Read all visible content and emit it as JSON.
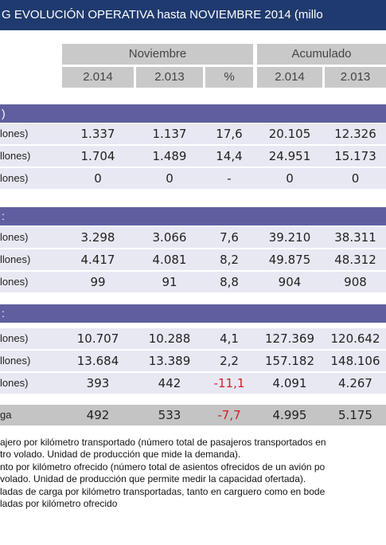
{
  "title": "G EVOLUCIÓN OPERATIVA hasta NOVIEMBRE 2014 (millo",
  "header": {
    "group1": "Noviembre",
    "group2": "Acumulado",
    "cols": [
      "2.014",
      "2.013",
      "%",
      "2.014",
      "2.013"
    ]
  },
  "sections": [
    {
      "label": ")",
      "rows": [
        {
          "label": "lones)",
          "cells": [
            "1.337",
            "1.137",
            "17,6",
            "20.105",
            "12.326"
          ]
        },
        {
          "label": "llones)",
          "cells": [
            "1.704",
            "1.489",
            "14,4",
            "24.951",
            "15.173"
          ]
        },
        {
          "label": "lones)",
          "cells": [
            "0",
            "0",
            "-",
            "0",
            "0"
          ]
        }
      ]
    },
    {
      "label": ":",
      "rows": [
        {
          "label": "lones)",
          "cells": [
            "3.298",
            "3.066",
            "7,6",
            "39.210",
            "38.311"
          ]
        },
        {
          "label": "llones)",
          "cells": [
            "4.417",
            "4.081",
            "8,2",
            "49.875",
            "48.312"
          ]
        },
        {
          "label": "lones)",
          "cells": [
            "99",
            "91",
            "8,8",
            "904",
            "908"
          ]
        }
      ]
    },
    {
      "label": ":",
      "rows": [
        {
          "label": "lones)",
          "cells": [
            "10.707",
            "10.288",
            "4,1",
            "127.369",
            "120.642"
          ]
        },
        {
          "label": "llones)",
          "cells": [
            "13.684",
            "13.389",
            "2,2",
            "157.182",
            "148.106"
          ]
        },
        {
          "label": "lones)",
          "cells": [
            "393",
            "442",
            "-11,1",
            "4.091",
            "4.267"
          ]
        }
      ]
    }
  ],
  "total": {
    "label": "ga",
    "cells": [
      "492",
      "533",
      "-7,7",
      "4.995",
      "5.175"
    ]
  },
  "notes": [
    "ajero por kilómetro transportado (número total de pasajeros transportados en",
    "tro volado. Unidad de producción que mide la demanda).",
    "nto por kilómetro ofrecido (número total de asientos ofrecidos de un avión po",
    "volado. Unidad de producción que permite medir la capacidad ofertada).",
    "ladas de carga por kilómetro transportadas, tanto en carguero como en bode",
    "ladas por kilómetro ofrecido"
  ]
}
